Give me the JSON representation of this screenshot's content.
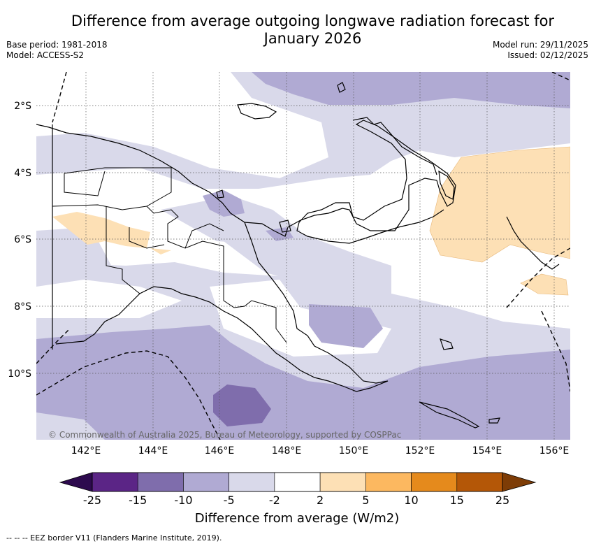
{
  "header": {
    "title_line1": "Difference from average outgoing longwave radiation forecast for",
    "title_line2": "January 2026",
    "base_period": "Base period: 1981-2018",
    "model": "Model: ACCESS-S2",
    "model_run": "Model run: 29/11/2025",
    "issued": "Issued: 02/12/2025"
  },
  "map": {
    "region": "Papua New Guinea",
    "lat_labels": [
      "2°S",
      "4°S",
      "6°S",
      "8°S",
      "10°S"
    ],
    "lon_labels": [
      "142°E",
      "144°E",
      "146°E",
      "148°E",
      "150°E",
      "152°E",
      "154°E",
      "156°E"
    ],
    "copyright": "© Commonwealth of Australia 2025, Bureau of Meteorology, supported by COSPPac"
  },
  "colorbar": {
    "ticks": [
      "-25",
      "-15",
      "-10",
      "-5",
      "-2",
      "2",
      "5",
      "10",
      "15",
      "25"
    ],
    "colors": [
      "#5b2586",
      "#7f6dac",
      "#b0aad3",
      "#d9d9ea",
      "#ffffff",
      "#fde0b5",
      "#fcb860",
      "#e58a1c",
      "#b45707"
    ],
    "low_extend_color": "#2d0a4e",
    "high_extend_color": "#7d3c06",
    "label": "Difference from average (W/m2)"
  },
  "legend": {
    "eez_note": "--  --  -- EEZ border V11 (Flanders Marine Institute, 2019)."
  }
}
